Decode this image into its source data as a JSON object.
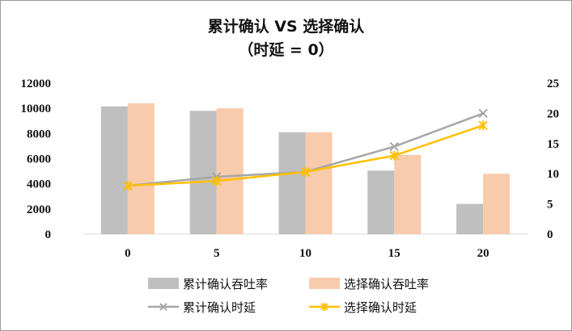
{
  "chart_data": {
    "type": "bar+line",
    "title": "累计确认 VS 选择确认",
    "subtitle": "（时延 = 0）",
    "categories": [
      "0",
      "5",
      "10",
      "15",
      "20"
    ],
    "y_left": {
      "min": 0,
      "max": 12000,
      "ticks": [
        "0",
        "2000",
        "4000",
        "6000",
        "8000",
        "10000",
        "12000"
      ]
    },
    "y_right": {
      "min": 0,
      "max": 25,
      "ticks": [
        "0",
        "5",
        "10",
        "15",
        "20",
        "25"
      ]
    },
    "bar_series": [
      {
        "name": "累计确认吞吐率",
        "color": "#bfbfbf",
        "values": [
          10150,
          9800,
          8100,
          5050,
          2400
        ]
      },
      {
        "name": "选择确认吞吐率",
        "color": "#f8cbad",
        "values": [
          10400,
          10000,
          8100,
          6300,
          4800
        ]
      }
    ],
    "line_series": [
      {
        "name": "累计确认时延",
        "color": "#a6a6a6",
        "marker": "x",
        "values": [
          8.0,
          9.5,
          10.3,
          14.5,
          20.0
        ]
      },
      {
        "name": "选择确认时延",
        "color": "#ffc000",
        "marker": "star",
        "values": [
          8.0,
          8.8,
          10.3,
          13.0,
          18.0
        ]
      }
    ],
    "legend_position": "bottom",
    "grid": false
  }
}
